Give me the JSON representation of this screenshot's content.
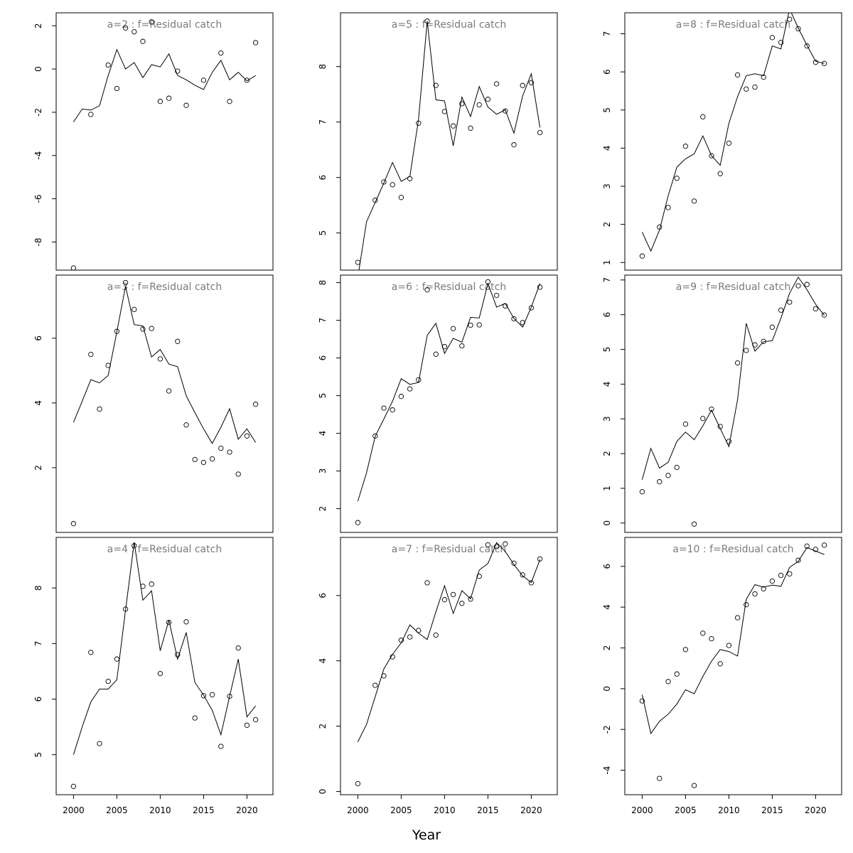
{
  "figure": {
    "xlabel": "Year"
  },
  "chart_data": [
    {
      "type": "scatter+line",
      "title": "a=2  :  f=Residual catch",
      "xlim": [
        1998,
        2023
      ],
      "ylim": [
        -9.3,
        2.6
      ],
      "xticks": [
        2000,
        2005,
        2010,
        2015,
        2020
      ],
      "yticks": [
        -8,
        -6,
        -4,
        -2,
        0,
        2
      ],
      "series": [
        {
          "kind": "line",
          "x": [
            2000,
            2001,
            2002,
            2003,
            2004,
            2005,
            2006,
            2007,
            2008,
            2009,
            2010,
            2011,
            2012,
            2013,
            2014,
            2015,
            2016,
            2017,
            2018,
            2019,
            2020,
            2021
          ],
          "y": [
            -2.45,
            -1.85,
            -1.9,
            -1.7,
            -0.3,
            0.9,
            0.0,
            0.3,
            -0.4,
            0.2,
            0.1,
            0.7,
            -0.3,
            -0.5,
            -0.75,
            -0.95,
            -0.15,
            0.4,
            -0.5,
            -0.15,
            -0.55,
            -0.3
          ]
        },
        {
          "kind": "points",
          "x": [
            2000,
            2002,
            2004,
            2005,
            2006,
            2007,
            2008,
            2009,
            2010,
            2011,
            2012,
            2013,
            2015,
            2017,
            2018,
            2020,
            2021
          ],
          "y": [
            -9.2,
            -2.1,
            0.18,
            -0.9,
            1.9,
            1.72,
            1.28,
            2.18,
            -1.5,
            -1.35,
            -0.1,
            -1.68,
            -0.52,
            0.74,
            -1.5,
            -0.52,
            1.22
          ]
        }
      ]
    },
    {
      "type": "scatter+line",
      "title": "a=5  :  f=Residual catch",
      "xlim": [
        1998,
        2023
      ],
      "ylim": [
        4.33,
        8.97
      ],
      "xticks": [
        2000,
        2005,
        2010,
        2015,
        2020
      ],
      "yticks": [
        5,
        6,
        7,
        8
      ],
      "series": [
        {
          "kind": "line",
          "x": [
            2000,
            2001,
            2002,
            2003,
            2004,
            2005,
            2006,
            2007,
            2008,
            2009,
            2010,
            2011,
            2012,
            2013,
            2014,
            2015,
            2016,
            2017,
            2018,
            2019,
            2020,
            2021
          ],
          "y": [
            4.2,
            5.2,
            5.55,
            5.9,
            6.27,
            5.93,
            6.02,
            7.05,
            8.82,
            7.4,
            7.38,
            6.57,
            7.45,
            7.1,
            7.64,
            7.27,
            7.14,
            7.22,
            6.8,
            7.47,
            7.87,
            6.9
          ]
        },
        {
          "kind": "points",
          "x": [
            2000,
            2002,
            2003,
            2004,
            2005,
            2006,
            2007,
            2008,
            2009,
            2010,
            2011,
            2012,
            2013,
            2014,
            2015,
            2016,
            2017,
            2018,
            2019,
            2020,
            2021
          ],
          "y": [
            4.47,
            5.59,
            5.92,
            5.87,
            5.64,
            5.98,
            6.98,
            8.82,
            7.66,
            7.19,
            6.93,
            7.33,
            6.89,
            7.31,
            7.41,
            7.69,
            7.2,
            6.59,
            7.66,
            7.71,
            6.81
          ]
        }
      ]
    },
    {
      "type": "scatter+line",
      "title": "a=8  :  f=Residual catch",
      "xlim": [
        1998,
        2023
      ],
      "ylim": [
        0.8,
        7.55
      ],
      "xticks": [
        2000,
        2005,
        2010,
        2015,
        2020
      ],
      "yticks": [
        1,
        2,
        3,
        4,
        5,
        6,
        7
      ],
      "series": [
        {
          "kind": "line",
          "x": [
            2000,
            2001,
            2002,
            2003,
            2004,
            2005,
            2006,
            2007,
            2008,
            2009,
            2010,
            2011,
            2012,
            2013,
            2014,
            2015,
            2016,
            2017,
            2018,
            2019,
            2020,
            2021
          ],
          "y": [
            1.8,
            1.3,
            1.85,
            2.75,
            3.5,
            3.72,
            3.85,
            4.32,
            3.8,
            3.55,
            4.65,
            5.35,
            5.9,
            5.95,
            5.9,
            6.68,
            6.6,
            7.65,
            7.15,
            6.7,
            6.28,
            6.22
          ]
        },
        {
          "kind": "points",
          "x": [
            2000,
            2002,
            2003,
            2004,
            2005,
            2006,
            2007,
            2008,
            2009,
            2010,
            2011,
            2012,
            2013,
            2014,
            2015,
            2016,
            2017,
            2018,
            2019,
            2020,
            2021
          ],
          "y": [
            1.17,
            1.93,
            2.44,
            3.21,
            4.05,
            2.61,
            4.82,
            3.8,
            3.33,
            4.13,
            5.92,
            5.55,
            5.6,
            5.86,
            6.9,
            6.77,
            7.38,
            7.13,
            6.68,
            6.25,
            6.22
          ]
        }
      ]
    },
    {
      "type": "scatter+line",
      "title": "a=3  :  f=Residual catch",
      "xlim": [
        1998,
        2023
      ],
      "ylim": [
        0.0,
        7.95
      ],
      "xticks": [
        2000,
        2005,
        2010,
        2015,
        2020
      ],
      "yticks": [
        2,
        4,
        6
      ],
      "series": [
        {
          "kind": "line",
          "x": [
            2000,
            2001,
            2002,
            2003,
            2004,
            2005,
            2006,
            2007,
            2008,
            2009,
            2010,
            2011,
            2012,
            2013,
            2014,
            2015,
            2016,
            2017,
            2018,
            2019,
            2020,
            2021
          ],
          "y": [
            3.4,
            4.05,
            4.72,
            4.62,
            4.85,
            6.2,
            7.6,
            6.42,
            6.38,
            5.42,
            5.65,
            5.2,
            5.12,
            4.22,
            3.7,
            3.2,
            2.75,
            3.25,
            3.82,
            2.88,
            3.2,
            2.78
          ]
        },
        {
          "kind": "points",
          "x": [
            2000,
            2002,
            2003,
            2004,
            2005,
            2006,
            2007,
            2008,
            2009,
            2010,
            2011,
            2012,
            2013,
            2014,
            2015,
            2016,
            2017,
            2018,
            2019,
            2020,
            2021
          ],
          "y": [
            0.27,
            5.5,
            3.81,
            5.16,
            6.21,
            7.72,
            6.89,
            6.28,
            6.3,
            5.36,
            4.37,
            5.9,
            3.32,
            2.25,
            2.16,
            2.27,
            2.6,
            2.48,
            1.8,
            2.98,
            3.96
          ]
        }
      ]
    },
    {
      "type": "scatter+line",
      "title": "a=6  :  f=Residual catch",
      "xlim": [
        1998,
        2023
      ],
      "ylim": [
        1.37,
        8.2
      ],
      "xticks": [
        2000,
        2005,
        2010,
        2015,
        2020
      ],
      "yticks": [
        2,
        3,
        4,
        5,
        6,
        7,
        8
      ],
      "series": [
        {
          "kind": "line",
          "x": [
            2000,
            2001,
            2002,
            2003,
            2004,
            2005,
            2006,
            2007,
            2008,
            2009,
            2010,
            2011,
            2012,
            2013,
            2014,
            2015,
            2016,
            2017,
            2018,
            2019,
            2020,
            2021
          ],
          "y": [
            2.2,
            2.95,
            3.92,
            4.38,
            4.85,
            5.45,
            5.3,
            5.35,
            6.6,
            6.92,
            6.12,
            6.52,
            6.42,
            7.08,
            7.06,
            7.98,
            7.35,
            7.45,
            7.05,
            6.82,
            7.35,
            7.98
          ]
        },
        {
          "kind": "points",
          "x": [
            2000,
            2002,
            2003,
            2004,
            2005,
            2006,
            2007,
            2008,
            2009,
            2010,
            2011,
            2012,
            2013,
            2014,
            2015,
            2016,
            2017,
            2018,
            2019,
            2020,
            2021
          ],
          "y": [
            1.63,
            3.93,
            4.67,
            4.62,
            4.98,
            5.18,
            5.42,
            7.81,
            6.1,
            6.3,
            6.78,
            6.32,
            6.87,
            6.88,
            8.02,
            7.66,
            7.38,
            7.04,
            6.94,
            7.33,
            7.88
          ]
        }
      ]
    },
    {
      "type": "scatter+line",
      "title": "a=9  :  f=Residual catch",
      "xlim": [
        1998,
        2023
      ],
      "ylim": [
        -0.27,
        7.14
      ],
      "xticks": [
        2000,
        2005,
        2010,
        2015,
        2020
      ],
      "yticks": [
        0,
        1,
        2,
        3,
        4,
        5,
        6,
        7
      ],
      "series": [
        {
          "kind": "line",
          "x": [
            2000,
            2001,
            2002,
            2003,
            2004,
            2005,
            2006,
            2007,
            2008,
            2009,
            2010,
            2011,
            2012,
            2013,
            2014,
            2015,
            2016,
            2017,
            2018,
            2019,
            2020,
            2021
          ],
          "y": [
            1.25,
            2.15,
            1.58,
            1.75,
            2.35,
            2.62,
            2.4,
            2.8,
            3.25,
            2.72,
            2.2,
            3.55,
            5.75,
            4.95,
            5.22,
            5.25,
            5.9,
            6.62,
            7.08,
            6.72,
            6.3,
            5.98
          ]
        },
        {
          "kind": "points",
          "x": [
            2000,
            2002,
            2003,
            2004,
            2005,
            2006,
            2007,
            2008,
            2009,
            2010,
            2011,
            2012,
            2013,
            2014,
            2015,
            2016,
            2017,
            2018,
            2019,
            2020,
            2021
          ],
          "y": [
            0.9,
            1.19,
            1.37,
            1.6,
            2.85,
            -0.03,
            3.01,
            3.28,
            2.78,
            2.35,
            4.61,
            4.97,
            5.13,
            5.23,
            5.64,
            6.13,
            6.36,
            6.83,
            6.87,
            6.17,
            5.99
          ]
        }
      ]
    },
    {
      "type": "scatter+line",
      "title": "a=4  :  f=Residual catch",
      "xlim": [
        1998,
        2023
      ],
      "ylim": [
        4.28,
        8.91
      ],
      "xticks": [
        2000,
        2005,
        2010,
        2015,
        2020
      ],
      "yticks": [
        5,
        6,
        7,
        8
      ],
      "series": [
        {
          "kind": "line",
          "x": [
            2000,
            2001,
            2002,
            2003,
            2004,
            2005,
            2006,
            2007,
            2008,
            2009,
            2010,
            2011,
            2012,
            2013,
            2014,
            2015,
            2016,
            2017,
            2018,
            2019,
            2020,
            2021
          ],
          "y": [
            5.0,
            5.5,
            5.95,
            6.18,
            6.18,
            6.35,
            7.6,
            8.82,
            7.78,
            7.95,
            6.87,
            7.42,
            6.72,
            7.2,
            6.3,
            6.07,
            5.8,
            5.36,
            6.05,
            6.72,
            5.68,
            5.88
          ]
        },
        {
          "kind": "points",
          "x": [
            2000,
            2002,
            2003,
            2004,
            2005,
            2006,
            2007,
            2008,
            2009,
            2010,
            2011,
            2012,
            2013,
            2014,
            2015,
            2016,
            2017,
            2018,
            2019,
            2020,
            2021
          ],
          "y": [
            4.43,
            6.84,
            5.2,
            6.32,
            6.72,
            7.62,
            8.76,
            8.03,
            8.07,
            6.46,
            7.38,
            6.8,
            7.39,
            5.66,
            6.06,
            6.08,
            5.15,
            6.05,
            6.92,
            5.53,
            5.63
          ]
        }
      ]
    },
    {
      "type": "scatter+line",
      "title": "a=7  :  f=Residual catch",
      "xlim": [
        1998,
        2023
      ],
      "ylim": [
        -0.1,
        7.78
      ],
      "xticks": [
        2000,
        2005,
        2010,
        2015,
        2020
      ],
      "yticks": [
        0,
        2,
        4,
        6
      ],
      "series": [
        {
          "kind": "line",
          "x": [
            2000,
            2001,
            2002,
            2003,
            2004,
            2005,
            2006,
            2007,
            2008,
            2009,
            2010,
            2011,
            2012,
            2013,
            2014,
            2015,
            2016,
            2017,
            2018,
            2019,
            2020,
            2021
          ],
          "y": [
            1.52,
            2.05,
            2.9,
            3.75,
            4.2,
            4.55,
            5.1,
            4.85,
            4.65,
            5.5,
            6.3,
            5.45,
            6.15,
            5.9,
            6.78,
            6.98,
            7.62,
            7.35,
            6.95,
            6.6,
            6.4,
            7.1
          ]
        },
        {
          "kind": "points",
          "x": [
            2000,
            2002,
            2003,
            2004,
            2005,
            2006,
            2007,
            2008,
            2009,
            2010,
            2011,
            2012,
            2013,
            2014,
            2015,
            2016,
            2017,
            2018,
            2019,
            2020,
            2021
          ],
          "y": [
            0.24,
            3.25,
            3.54,
            4.12,
            4.63,
            4.73,
            4.93,
            6.39,
            4.79,
            5.87,
            6.03,
            5.76,
            5.89,
            6.59,
            7.55,
            7.5,
            7.58,
            6.99,
            6.63,
            6.39,
            7.12
          ]
        }
      ]
    },
    {
      "type": "scatter+line",
      "title": "a=10  :  f=Residual catch",
      "xlim": [
        1998,
        2023
      ],
      "ylim": [
        -5.2,
        7.42
      ],
      "xticks": [
        2000,
        2005,
        2010,
        2015,
        2020
      ],
      "yticks": [
        -4,
        -2,
        0,
        2,
        4,
        6
      ],
      "series": [
        {
          "kind": "line",
          "x": [
            2000,
            2001,
            2002,
            2003,
            2004,
            2005,
            2006,
            2007,
            2008,
            2009,
            2010,
            2011,
            2012,
            2013,
            2014,
            2015,
            2016,
            2017,
            2018,
            2019,
            2020,
            2021
          ],
          "y": [
            -0.3,
            -2.2,
            -1.6,
            -1.25,
            -0.75,
            -0.05,
            -0.25,
            0.6,
            1.35,
            1.92,
            1.82,
            1.6,
            4.38,
            5.1,
            4.98,
            5.08,
            5.02,
            5.95,
            6.25,
            6.92,
            6.75,
            6.58
          ]
        },
        {
          "kind": "points",
          "x": [
            2000,
            2002,
            2003,
            2004,
            2005,
            2006,
            2007,
            2008,
            2009,
            2010,
            2011,
            2012,
            2013,
            2014,
            2015,
            2016,
            2017,
            2018,
            2019,
            2020,
            2021
          ],
          "y": [
            -0.6,
            -4.4,
            0.35,
            0.72,
            1.92,
            -4.75,
            2.72,
            2.45,
            1.22,
            2.12,
            3.48,
            4.12,
            4.65,
            4.9,
            5.28,
            5.56,
            5.63,
            6.3,
            6.99,
            6.83,
            7.04
          ]
        }
      ]
    }
  ]
}
